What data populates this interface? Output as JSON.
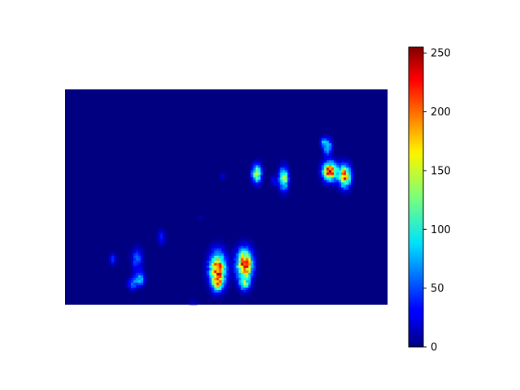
{
  "chart_data": {
    "type": "heatmap",
    "title": "",
    "xlabel": "",
    "ylabel": "",
    "axes_visible": false,
    "colormap": "jet",
    "value_range": [
      0,
      255
    ],
    "grid_size": {
      "cols": 132,
      "rows": 88
    },
    "background_value": 0,
    "blobs": [
      {
        "x": 62,
        "y": 73,
        "sx": 2.2,
        "sy": 4.5,
        "peak": 220
      },
      {
        "x": 62,
        "y": 79,
        "sx": 1.5,
        "sy": 2.0,
        "peak": 95
      },
      {
        "x": 73,
        "y": 71,
        "sx": 2.2,
        "sy": 4.0,
        "peak": 225
      },
      {
        "x": 73,
        "y": 79,
        "sx": 1.5,
        "sy": 2.0,
        "peak": 90
      },
      {
        "x": 78,
        "y": 34,
        "sx": 1.3,
        "sy": 2.5,
        "peak": 150
      },
      {
        "x": 89,
        "y": 36,
        "sx": 1.3,
        "sy": 3.0,
        "peak": 145
      },
      {
        "x": 108,
        "y": 33,
        "sx": 2.0,
        "sy": 2.5,
        "peak": 225
      },
      {
        "x": 114,
        "y": 35,
        "sx": 1.6,
        "sy": 3.0,
        "peak": 200
      },
      {
        "x": 107,
        "y": 23,
        "sx": 1.2,
        "sy": 2.2,
        "peak": 95
      },
      {
        "x": 29,
        "y": 69,
        "sx": 1.5,
        "sy": 3.0,
        "peak": 55
      },
      {
        "x": 30,
        "y": 77,
        "sx": 1.4,
        "sy": 2.0,
        "peak": 80
      },
      {
        "x": 27,
        "y": 79,
        "sx": 1.2,
        "sy": 1.6,
        "peak": 60
      },
      {
        "x": 39,
        "y": 60,
        "sx": 1.0,
        "sy": 2.0,
        "peak": 40
      },
      {
        "x": 19,
        "y": 69,
        "sx": 1.0,
        "sy": 1.6,
        "peak": 40
      },
      {
        "x": 85,
        "y": 37,
        "sx": 0.9,
        "sy": 1.4,
        "peak": 30
      },
      {
        "x": 64,
        "y": 35,
        "sx": 0.8,
        "sy": 1.0,
        "peak": 20
      },
      {
        "x": 55,
        "y": 52,
        "sx": 0.8,
        "sy": 0.8,
        "peak": 12
      },
      {
        "x": 105,
        "y": 21,
        "sx": 0.8,
        "sy": 1.2,
        "peak": 60
      },
      {
        "x": 52,
        "y": 87,
        "sx": 1.0,
        "sy": 0.8,
        "peak": 20
      }
    ],
    "colorbar": {
      "ticks": [
        0,
        50,
        100,
        150,
        200,
        250
      ],
      "tick_labels": [
        "0",
        "50",
        "100",
        "150",
        "200",
        "250"
      ]
    }
  }
}
